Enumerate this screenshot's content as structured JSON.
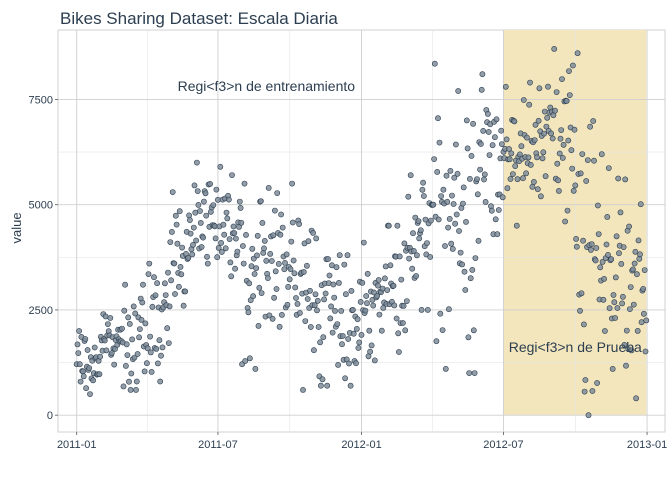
{
  "chart_data": {
    "type": "scatter",
    "title": "Bikes Sharing Dataset: Escala Diaria",
    "xlabel": "",
    "ylabel": "value",
    "x_range": [
      "2010-12-08",
      "2013-01-24"
    ],
    "ylim": [
      -400,
      9150
    ],
    "x_ticks": [
      {
        "date": "2011-01-01",
        "label": "2011-01"
      },
      {
        "date": "2011-07-01",
        "label": "2011-07"
      },
      {
        "date": "2012-01-01",
        "label": "2012-01"
      },
      {
        "date": "2012-07-01",
        "label": "2012-07"
      },
      {
        "date": "2013-01-01",
        "label": "2013-01"
      }
    ],
    "y_ticks": [
      0,
      2500,
      5000,
      7500
    ],
    "grid": true,
    "test_region": {
      "start": "2012-07-01",
      "end": "2012-12-31",
      "color": "#f3e6bd"
    },
    "annotations": [
      {
        "text": "Regi<f3>n de entrenamiento",
        "date": "2011-09-01",
        "value": 7700
      },
      {
        "text": "Regi<f3>n de Prueba",
        "date": "2012-10-01",
        "value": 1500
      }
    ],
    "point_color": "#7f8c99",
    "point_stroke": "#2c3e50",
    "monthly_profile": [
      {
        "month": "2011-01",
        "low": 500,
        "high": 2000
      },
      {
        "month": "2011-02",
        "low": 1200,
        "high": 2400
      },
      {
        "month": "2011-03",
        "low": 600,
        "high": 3100
      },
      {
        "month": "2011-04",
        "low": 800,
        "high": 3600
      },
      {
        "month": "2011-05",
        "low": 2600,
        "high": 5300
      },
      {
        "month": "2011-06",
        "low": 3600,
        "high": 6000
      },
      {
        "month": "2011-07",
        "low": 3300,
        "high": 5900
      },
      {
        "month": "2011-08",
        "low": 1100,
        "high": 5500
      },
      {
        "month": "2011-09",
        "low": 2100,
        "high": 5400
      },
      {
        "month": "2011-10",
        "low": 600,
        "high": 5500
      },
      {
        "month": "2011-11",
        "low": 700,
        "high": 4200
      },
      {
        "month": "2011-12",
        "low": 700,
        "high": 3800
      },
      {
        "month": "2012-01",
        "low": 1300,
        "high": 4100
      },
      {
        "month": "2012-02",
        "low": 1500,
        "high": 4500
      },
      {
        "month": "2012-03",
        "low": 2500,
        "high": 5700
      },
      {
        "month": "2012-04",
        "low": 1100,
        "high": 8350
      },
      {
        "month": "2012-05",
        "low": 1000,
        "high": 7700
      },
      {
        "month": "2012-06",
        "low": 4300,
        "high": 8100
      },
      {
        "month": "2012-07",
        "low": 4500,
        "high": 7800
      },
      {
        "month": "2012-08",
        "low": 5200,
        "high": 7900
      },
      {
        "month": "2012-09",
        "low": 4600,
        "high": 8700
      },
      {
        "month": "2012-10",
        "low": 0,
        "high": 8600
      },
      {
        "month": "2012-11",
        "low": 1100,
        "high": 6200
      },
      {
        "month": "2012-12",
        "low": 400,
        "high": 5600
      }
    ]
  }
}
